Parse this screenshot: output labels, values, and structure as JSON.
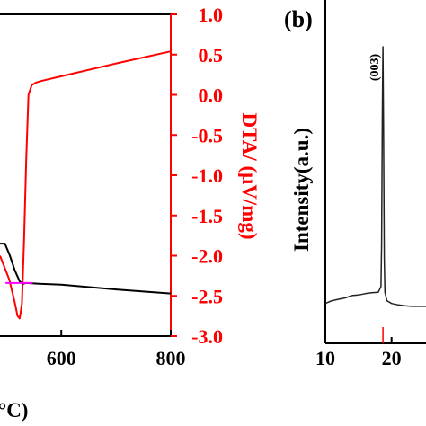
{
  "colors": {
    "axis": "#000000",
    "dta_axis": "#ff0000",
    "tg_line": "#000000",
    "dta_line": "#ff0000",
    "baseline": "#ff00ff",
    "xrd_line": "#222222",
    "xrd_marker": "#ff0000"
  },
  "chart_data": [
    {
      "panel": "a",
      "type": "line",
      "xlabel_partial": "°C)",
      "x_ticks": [
        "600",
        "800"
      ],
      "x_visible_range": [
        488,
        800
      ],
      "right_axis": {
        "label": "DTA/ (μV/mg)",
        "ylim": [
          -3.0,
          1.0
        ],
        "ticks": [
          "1.0",
          "0.5",
          "0.0",
          "-0.5",
          "-1.0",
          "-1.5",
          "-2.0",
          "-2.5",
          "-3.0"
        ]
      },
      "series": [
        {
          "role": "dta",
          "x": [
            488,
            505,
            515,
            520,
            524,
            528,
            532,
            536,
            540,
            546,
            553,
            562,
            600,
            700,
            800
          ],
          "y": [
            -2.0,
            -2.3,
            -2.58,
            -2.75,
            -2.78,
            -2.6,
            -1.8,
            -0.8,
            0.0,
            0.12,
            0.15,
            0.17,
            0.23,
            0.39,
            0.54
          ]
        },
        {
          "role": "tg",
          "x": [
            488,
            497,
            506,
            515,
            524,
            530,
            535,
            560,
            600,
            700,
            800
          ],
          "y": [
            -1.85,
            -1.85,
            -2.0,
            -2.18,
            -2.32,
            -2.35,
            -2.34,
            -2.35,
            -2.36,
            -2.42,
            -2.47
          ]
        },
        {
          "role": "baseline",
          "x": [
            498,
            548
          ],
          "y": [
            -2.34,
            -2.34
          ]
        }
      ]
    },
    {
      "panel": "b",
      "panel_label": "(b)",
      "type": "line",
      "ylabel": "Intensity(a.u.)",
      "x_ticks": [
        "10",
        "20"
      ],
      "x_visible_range": [
        10,
        25.2
      ],
      "peaks": [
        {
          "label": "(003)",
          "x": 18.7
        }
      ],
      "reference_markers": [
        {
          "x": 18.7
        }
      ],
      "series": [
        {
          "role": "xrd",
          "x": [
            10,
            11,
            12,
            13,
            14,
            15,
            16,
            17,
            18,
            18.4,
            18.5,
            18.6,
            18.7,
            18.8,
            18.9,
            19.0,
            19.3,
            20,
            21,
            22,
            23,
            24,
            25.2
          ],
          "y": [
            0.09,
            0.1,
            0.105,
            0.11,
            0.118,
            0.12,
            0.125,
            0.128,
            0.13,
            0.15,
            0.3,
            0.75,
            1.0,
            0.7,
            0.25,
            0.13,
            0.1,
            0.09,
            0.085,
            0.082,
            0.08,
            0.08,
            0.08
          ]
        }
      ]
    }
  ]
}
